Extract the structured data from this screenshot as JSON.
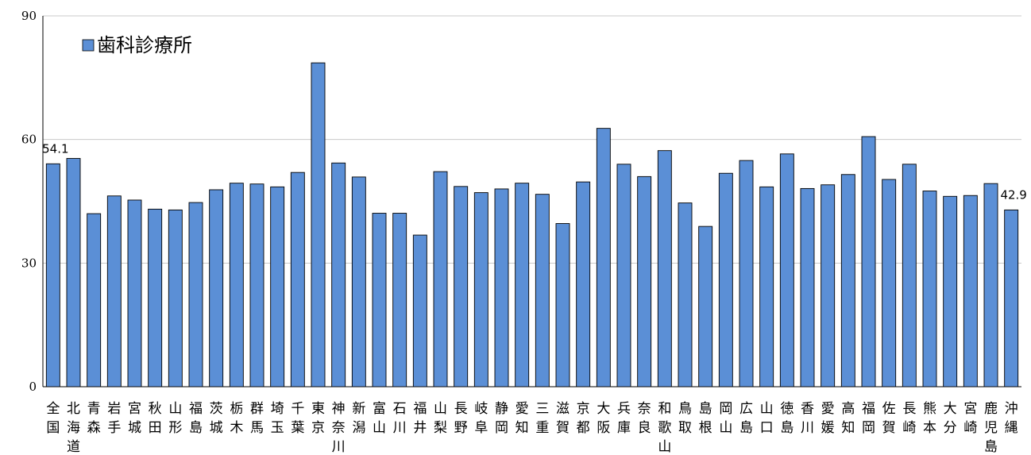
{
  "chart_data": {
    "type": "bar",
    "categories": [
      "全国",
      "北海道",
      "青森",
      "岩手",
      "宮城",
      "秋田",
      "山形",
      "福島",
      "茨城",
      "栃木",
      "群馬",
      "埼玉",
      "千葉",
      "東京",
      "神奈川",
      "新潟",
      "富山",
      "石川",
      "福井",
      "山梨",
      "長野",
      "岐阜",
      "静岡",
      "愛知",
      "三重",
      "滋賀",
      "京都",
      "大阪",
      "兵庫",
      "奈良",
      "和歌山",
      "鳥取",
      "島根",
      "岡山",
      "広島",
      "山口",
      "徳島",
      "香川",
      "愛媛",
      "高知",
      "福岡",
      "佐賀",
      "長崎",
      "熊本",
      "大分",
      "宮崎",
      "鹿児島",
      "沖縄"
    ],
    "series": [
      {
        "name": "歯科診療所",
        "color": "#5b8fd6",
        "values": [
          54.1,
          55.4,
          42.0,
          46.3,
          45.3,
          43.1,
          42.9,
          44.7,
          47.8,
          49.4,
          49.2,
          48.5,
          52.0,
          78.6,
          54.3,
          50.9,
          42.1,
          42.1,
          36.8,
          52.2,
          48.6,
          47.1,
          48.0,
          49.4,
          46.7,
          39.6,
          49.7,
          62.7,
          54.0,
          51.0,
          57.3,
          44.6,
          38.9,
          51.8,
          54.9,
          48.5,
          56.5,
          48.1,
          49.0,
          51.5,
          60.7,
          50.3,
          54.0,
          47.5,
          46.2,
          46.4,
          49.3,
          42.9
        ]
      }
    ],
    "data_labels": [
      {
        "index": 0,
        "text": "54.1"
      },
      {
        "index": 47,
        "text": "42.9"
      }
    ],
    "yticks": [
      "0",
      "30",
      "60",
      "90"
    ],
    "ylim": [
      0,
      90
    ],
    "grid": true,
    "legend_position": "top-left"
  }
}
